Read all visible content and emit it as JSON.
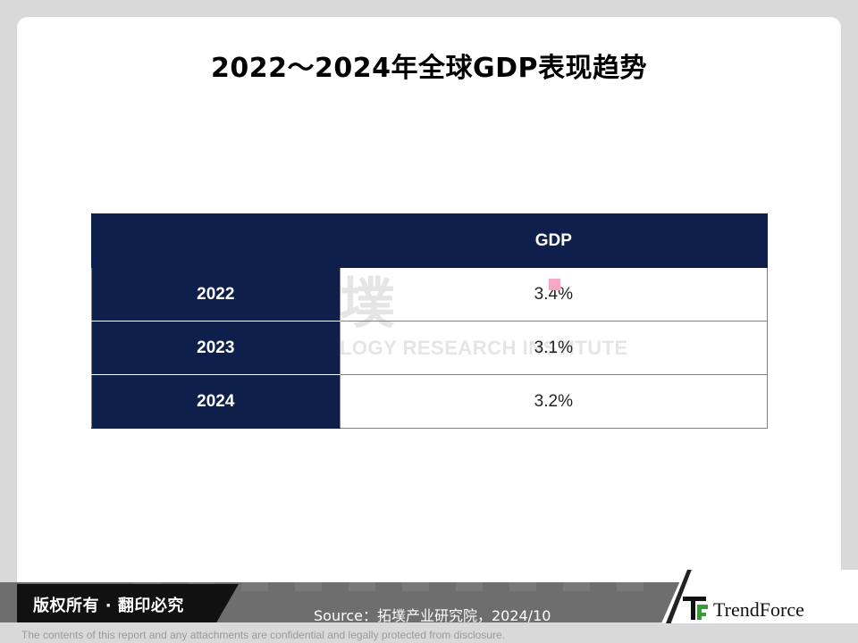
{
  "title": "2022～2024年全球GDP表现趋势",
  "table": {
    "header": [
      "",
      "GDP"
    ],
    "rows": [
      {
        "year": "2022",
        "gdp": "3.4%"
      },
      {
        "year": "2023",
        "gdp": "3.1%"
      },
      {
        "year": "2024",
        "gdp": "3.2%"
      }
    ]
  },
  "watermark": {
    "main": "拓墣",
    "sub": "TOPOLOGY RESEARCH INSTITUTE"
  },
  "footer": {
    "copyright": "版权所有 · 翻印必究",
    "source": "Source：拓墣产业研究院，2024/10",
    "logo_text": "TrendForce",
    "disclaimer": "The contents of this report and any attachments are confidential and legally protected from disclosure."
  },
  "colors": {
    "header_bg": "#0d1f4a",
    "footer_bar": "#6e6e6e",
    "logo_green": "#3a9a3a"
  }
}
